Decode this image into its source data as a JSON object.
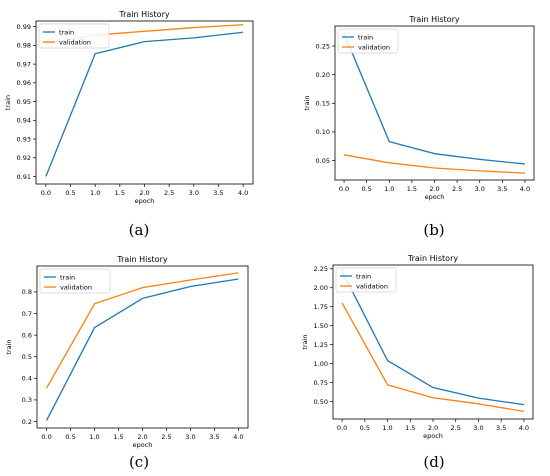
{
  "chart_data": [
    {
      "type": "line",
      "panel_label": "(a)",
      "title": "Train History",
      "xlabel": "epoch",
      "ylabel": "train",
      "x": [
        0,
        1,
        2,
        3,
        4
      ],
      "xticks": [
        "0.0",
        "0.5",
        "1.0",
        "1.5",
        "2.0",
        "2.5",
        "3.0",
        "3.5",
        "4.0"
      ],
      "yticks": [
        "0.91",
        "0.92",
        "0.93",
        "0.94",
        "0.95",
        "0.96",
        "0.97",
        "0.98",
        "0.99"
      ],
      "xlim": [
        -0.2,
        4.2
      ],
      "ylim": [
        0.906,
        0.993
      ],
      "legend": "upper-left",
      "grid": false,
      "series": [
        {
          "name": "train",
          "color": "#1f77b4",
          "values": [
            0.91,
            0.9755,
            0.982,
            0.984,
            0.987
          ]
        },
        {
          "name": "validation",
          "color": "#ff7f0e",
          "values": [
            0.981,
            0.9855,
            0.9875,
            0.9895,
            0.991
          ]
        }
      ]
    },
    {
      "type": "line",
      "panel_label": "(b)",
      "title": "Train History",
      "xlabel": "epoch",
      "ylabel": "train",
      "x": [
        0,
        1,
        2,
        3,
        4
      ],
      "xticks": [
        "0.0",
        "0.5",
        "1.0",
        "1.5",
        "2.0",
        "2.5",
        "3.0",
        "3.5",
        "4.0"
      ],
      "yticks": [
        "0.05",
        "0.10",
        "0.15",
        "0.20",
        "0.25"
      ],
      "xlim": [
        -0.2,
        4.2
      ],
      "ylim": [
        0.016,
        0.285
      ],
      "legend": "upper-left",
      "grid": false,
      "series": [
        {
          "name": "train",
          "color": "#1f77b4",
          "values": [
            0.272,
            0.083,
            0.062,
            0.052,
            0.044
          ]
        },
        {
          "name": "validation",
          "color": "#ff7f0e",
          "values": [
            0.06,
            0.046,
            0.037,
            0.032,
            0.028
          ]
        }
      ]
    },
    {
      "type": "line",
      "panel_label": "(c)",
      "title": "Train History",
      "xlabel": "epoch",
      "ylabel": "train",
      "x": [
        0,
        1,
        2,
        3,
        4
      ],
      "xticks": [
        "0.0",
        "0.5",
        "1.0",
        "1.5",
        "2.0",
        "2.5",
        "3.0",
        "3.5",
        "4.0"
      ],
      "yticks": [
        "0.2",
        "0.3",
        "0.4",
        "0.5",
        "0.6",
        "0.7",
        "0.8"
      ],
      "xlim": [
        -0.2,
        4.2
      ],
      "ylim": [
        0.17,
        0.92
      ],
      "legend": "upper-left",
      "grid": false,
      "series": [
        {
          "name": "train",
          "color": "#1f77b4",
          "values": [
            0.205,
            0.635,
            0.77,
            0.825,
            0.86
          ]
        },
        {
          "name": "validation",
          "color": "#ff7f0e",
          "values": [
            0.355,
            0.745,
            0.82,
            0.855,
            0.888
          ]
        }
      ]
    },
    {
      "type": "line",
      "panel_label": "(d)",
      "title": "Train History",
      "xlabel": "epoch",
      "ylabel": "train",
      "x": [
        0,
        1,
        2,
        3,
        4
      ],
      "xticks": [
        "0.0",
        "0.5",
        "1.0",
        "1.5",
        "2.0",
        "2.5",
        "3.0",
        "3.5",
        "4.0"
      ],
      "yticks": [
        "0.50",
        "0.75",
        "1.00",
        "1.25",
        "1.50",
        "1.75",
        "2.00",
        "2.25"
      ],
      "xlim": [
        -0.2,
        4.2
      ],
      "ylim": [
        0.27,
        2.3
      ],
      "legend": "upper-left",
      "grid": false,
      "series": [
        {
          "name": "train",
          "color": "#1f77b4",
          "values": [
            2.22,
            1.04,
            0.685,
            0.545,
            0.46
          ]
        },
        {
          "name": "validation",
          "color": "#ff7f0e",
          "values": [
            1.8,
            0.72,
            0.55,
            0.47,
            0.37
          ]
        }
      ]
    }
  ]
}
